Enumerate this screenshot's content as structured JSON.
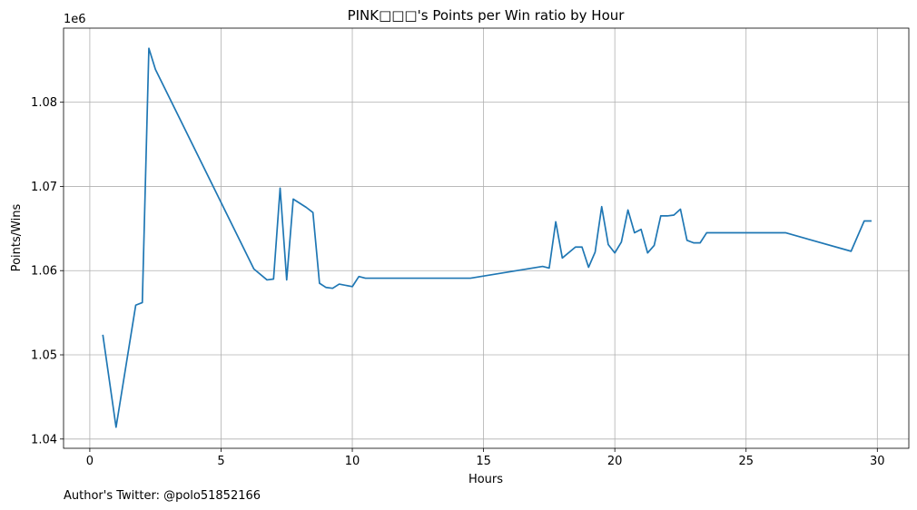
{
  "chart_data": {
    "type": "line",
    "title": "PINK□□□'s Points per Win ratio by Hour",
    "xlabel": "Hours",
    "ylabel": "Points/Wins",
    "y_offset_text": "1e6",
    "xlim": [
      -1,
      31.2
    ],
    "ylim": [
      1.0389,
      1.0888
    ],
    "xticks": [
      0,
      5,
      10,
      15,
      20,
      25,
      30
    ],
    "xtick_labels": [
      "0",
      "5",
      "10",
      "15",
      "20",
      "25",
      "30"
    ],
    "yticks": [
      1.04,
      1.05,
      1.06,
      1.07,
      1.08
    ],
    "ytick_labels": [
      "1.04",
      "1.05",
      "1.06",
      "1.07",
      "1.08"
    ],
    "grid": true,
    "series": [
      {
        "color": "#1f77b4",
        "x": [
          0.5,
          1.0,
          1.75,
          2.0,
          2.25,
          2.5,
          6.25,
          6.75,
          7.0,
          7.25,
          7.5,
          7.75,
          8.25,
          8.5,
          8.75,
          9.0,
          9.25,
          9.5,
          10.0,
          10.25,
          10.5,
          14.5,
          17.25,
          17.5,
          17.75,
          18.0,
          18.5,
          18.75,
          19.0,
          19.25,
          19.5,
          19.75,
          20.0,
          20.25,
          20.5,
          20.75,
          21.0,
          21.25,
          21.5,
          21.75,
          22.0,
          22.25,
          22.5,
          22.75,
          23.0,
          23.25,
          23.5,
          26.5,
          29.0,
          29.5,
          29.75
        ],
        "y": [
          1.0523,
          1.0414,
          1.0559,
          1.0562,
          1.0864,
          1.0839,
          1.0602,
          1.0589,
          1.059,
          1.0698,
          1.0589,
          1.0685,
          1.0675,
          1.0669,
          1.0585,
          1.058,
          1.0579,
          1.0584,
          1.0581,
          1.0593,
          1.0591,
          1.0591,
          1.0605,
          1.0603,
          1.0658,
          1.0615,
          1.0628,
          1.0628,
          1.0604,
          1.0622,
          1.0676,
          1.0631,
          1.0621,
          1.0634,
          1.0672,
          1.0645,
          1.0649,
          1.0621,
          1.063,
          1.0665,
          1.0665,
          1.0666,
          1.0673,
          1.0636,
          1.0633,
          1.0633,
          1.0645,
          1.0645,
          1.0623,
          1.0659,
          1.0659
        ]
      }
    ]
  },
  "footer": {
    "author": "Author's Twitter: @polo51852166"
  }
}
